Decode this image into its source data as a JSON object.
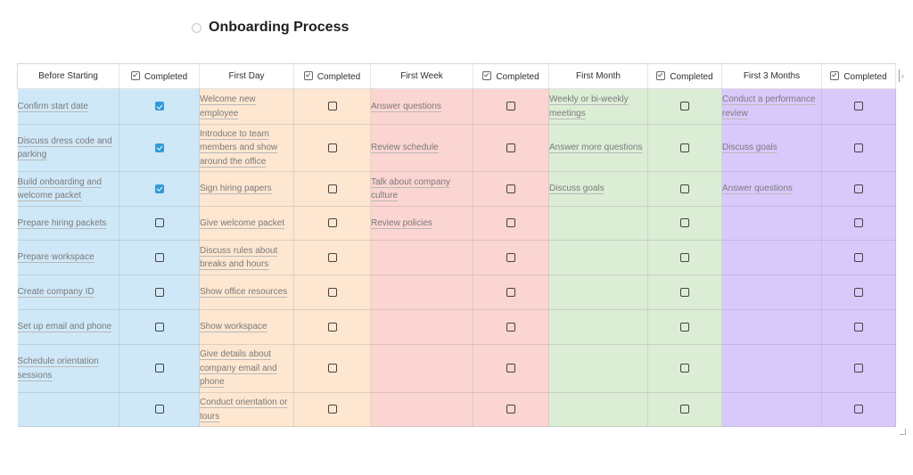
{
  "page": {
    "title": "Onboarding Process",
    "title_icon": "circle-icon"
  },
  "columns": [
    {
      "label": "Before Starting",
      "color": "#cfe8f7"
    },
    {
      "label": "Completed",
      "color": "#cfe8f7"
    },
    {
      "label": "First Day",
      "color": "#fde7d1"
    },
    {
      "label": "Completed",
      "color": "#fde7d1"
    },
    {
      "label": "First Week",
      "color": "#fbd5d1"
    },
    {
      "label": "Completed",
      "color": "#fbd5d1"
    },
    {
      "label": "First Month",
      "color": "#dcedd6"
    },
    {
      "label": "Completed",
      "color": "#dcedd6"
    },
    {
      "label": "First 3 Months",
      "color": "#d9c9fb"
    },
    {
      "label": "Completed",
      "color": "#d9c9fb"
    }
  ],
  "rows": [
    {
      "before": "Confirm start date",
      "before_done": true,
      "day": "Welcome new employee",
      "day_done": false,
      "week": "Answer questions",
      "week_done": false,
      "month": "Weekly or bi-weekly meetings",
      "month_done": false,
      "quarter": "Conduct a performance review",
      "quarter_done": false
    },
    {
      "before": "Discuss dress code and parking",
      "before_done": true,
      "day": "Introduce to team members and show around the office",
      "day_done": false,
      "week": "Review schedule",
      "week_done": false,
      "month": "Answer more questions",
      "month_done": false,
      "quarter": "Discuss goals",
      "quarter_done": false
    },
    {
      "before": "Build onboarding and welcome packet",
      "before_done": true,
      "day": "Sign hiring papers",
      "day_done": false,
      "week": "Talk about company culture",
      "week_done": false,
      "month": "Discuss goals",
      "month_done": false,
      "quarter": "Answer questions",
      "quarter_done": false
    },
    {
      "before": "Prepare hiring packets",
      "before_done": false,
      "day": "Give welcome packet",
      "day_done": false,
      "week": "Review policies",
      "week_done": false,
      "month": "",
      "month_done": false,
      "quarter": "",
      "quarter_done": false
    },
    {
      "before": "Prepare workspace",
      "before_done": false,
      "day": "Discuss rules about breaks and hours",
      "day_done": false,
      "week": "",
      "week_done": false,
      "month": "",
      "month_done": false,
      "quarter": "",
      "quarter_done": false
    },
    {
      "before": "Create company ID",
      "before_done": false,
      "day": "Show office resources",
      "day_done": false,
      "week": "",
      "week_done": false,
      "month": "",
      "month_done": false,
      "quarter": "",
      "quarter_done": false
    },
    {
      "before": "Set up email and phone",
      "before_done": false,
      "day": "Show workspace",
      "day_done": false,
      "week": "",
      "week_done": false,
      "month": "",
      "month_done": false,
      "quarter": "",
      "quarter_done": false
    },
    {
      "before": "Schedule orientation sessions",
      "before_done": false,
      "day": "Give details about company email and phone",
      "day_done": false,
      "week": "",
      "week_done": false,
      "month": "",
      "month_done": false,
      "quarter": "",
      "quarter_done": false
    },
    {
      "before": "",
      "before_done": false,
      "day": "Conduct orientation or tours",
      "day_done": false,
      "week": "",
      "week_done": false,
      "month": "",
      "month_done": false,
      "quarter": "",
      "quarter_done": false
    }
  ],
  "icons": {
    "header_checkbox": "checkbox-icon",
    "scroll_handle": "expand-handle-icon",
    "resize": "resize-grip-icon"
  }
}
